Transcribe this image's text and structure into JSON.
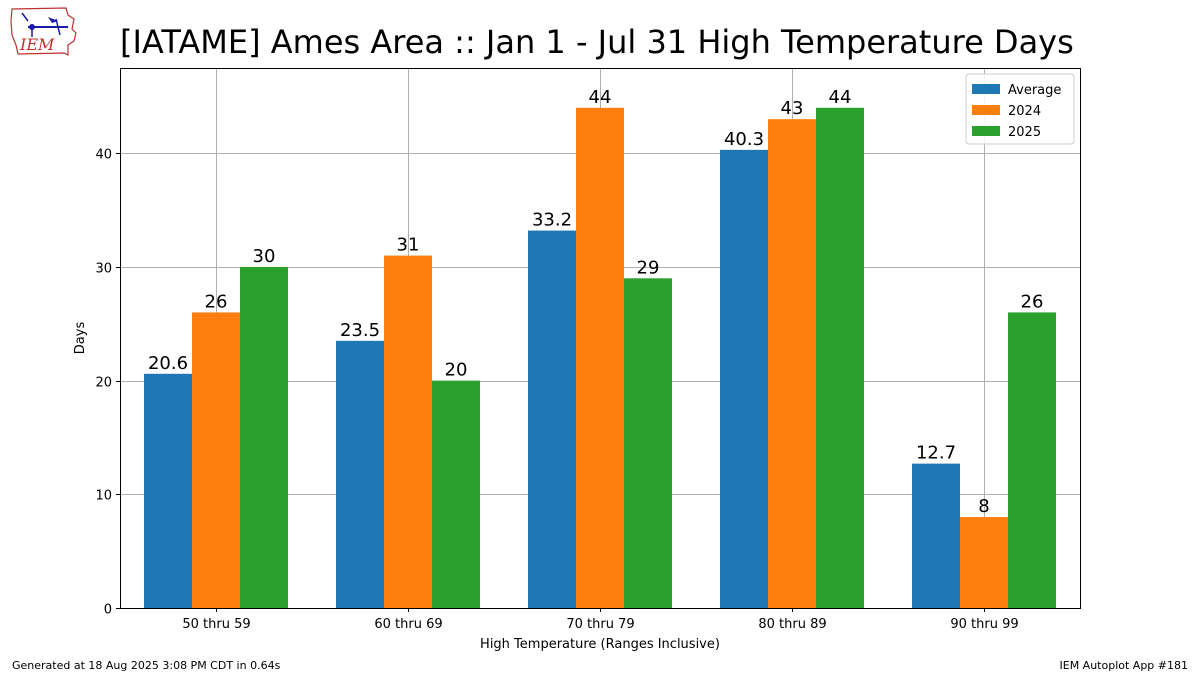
{
  "title": "[IATAME] Ames Area :: Jan 1 - Jul 31 High Temperature Days",
  "logo_text": "IEM",
  "footer": {
    "left": "Generated at 18 Aug 2025 3:08 PM CDT in 0.64s",
    "right": "IEM Autoplot App #181"
  },
  "chart_data": {
    "type": "bar",
    "xlabel": "High Temperature (Ranges Inclusive)",
    "ylabel": "Days",
    "ylim": [
      0,
      47.5
    ],
    "yticks": [
      0,
      10,
      20,
      30,
      40
    ],
    "grid": true,
    "legend_position": "top-right",
    "categories": [
      "50 thru 59",
      "60 thru 69",
      "70 thru 79",
      "80 thru 89",
      "90 thru 99"
    ],
    "series": [
      {
        "name": "Average",
        "color": "#1f77b4",
        "values": [
          20.6,
          23.5,
          33.2,
          40.3,
          12.7
        ],
        "labels": [
          "20.6",
          "23.5",
          "33.2",
          "40.3",
          "12.7"
        ]
      },
      {
        "name": "2024",
        "color": "#ff7f0e",
        "values": [
          26,
          31,
          44,
          43,
          8
        ],
        "labels": [
          "26",
          "31",
          "44",
          "43",
          "8"
        ]
      },
      {
        "name": "2025",
        "color": "#2ca02c",
        "values": [
          30,
          20,
          29,
          44,
          26
        ],
        "labels": [
          "30",
          "20",
          "29",
          "44",
          "26"
        ]
      }
    ]
  }
}
